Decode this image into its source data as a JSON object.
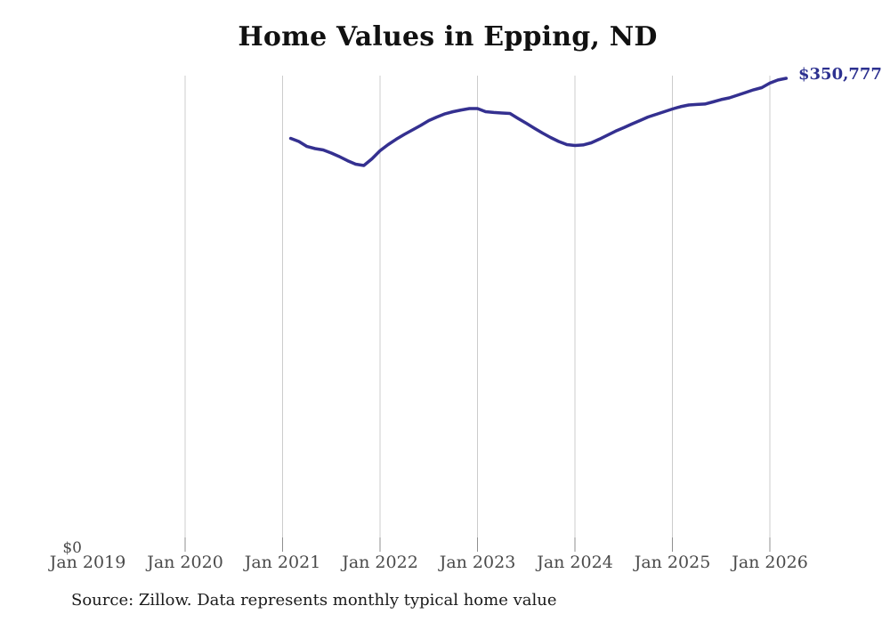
{
  "chart": {
    "title": "Home Values in Epping, ND",
    "source": "Source: Zillow. Data represents monthly typical home value",
    "end_label": "$350,777",
    "y_zero_label": "$0",
    "line_color": "#343090",
    "end_label_color": "#2d3190",
    "grid_color": "#cccccc",
    "tick_color": "#8f8f8f",
    "axis_text_color": "#4a4a4a"
  },
  "chart_data": {
    "type": "line",
    "title": "Home Values in Epping, ND",
    "xlabel": "",
    "ylabel": "",
    "ylim": [
      0,
      353000
    ],
    "grid": "vertical-only",
    "legend": "none",
    "x_tick_labels": [
      "Jan 2019",
      "Jan 2020",
      "Jan 2021",
      "Jan 2022",
      "Jan 2023",
      "Jan 2024",
      "Jan 2025",
      "Jan 2026"
    ],
    "y_tick_labels": [
      "$0"
    ],
    "end_value": 350777,
    "end_value_label": "$350,777",
    "series": [
      {
        "name": "Typical home value",
        "x": [
          "2021-02",
          "2021-03",
          "2021-04",
          "2021-05",
          "2021-06",
          "2021-07",
          "2021-08",
          "2021-09",
          "2021-10",
          "2021-11",
          "2021-12",
          "2022-01",
          "2022-02",
          "2022-03",
          "2022-04",
          "2022-05",
          "2022-06",
          "2022-07",
          "2022-08",
          "2022-09",
          "2022-10",
          "2022-11",
          "2022-12",
          "2023-01",
          "2023-02",
          "2023-03",
          "2023-04",
          "2023-05",
          "2023-06",
          "2023-07",
          "2023-08",
          "2023-09",
          "2023-10",
          "2023-11",
          "2023-12",
          "2024-01",
          "2024-02",
          "2024-03",
          "2024-04",
          "2024-05",
          "2024-06",
          "2024-07",
          "2024-08",
          "2024-09",
          "2024-10",
          "2024-11",
          "2024-12",
          "2025-01",
          "2025-02",
          "2025-03",
          "2025-04",
          "2025-05",
          "2025-06",
          "2025-07",
          "2025-08",
          "2025-09",
          "2025-10",
          "2025-11",
          "2025-12",
          "2026-01",
          "2026-02",
          "2026-03"
        ],
        "values": [
          306000,
          303700,
          300000,
          298400,
          297400,
          295100,
          292400,
          289400,
          286800,
          285800,
          290800,
          296800,
          301400,
          305400,
          309000,
          312300,
          315600,
          319300,
          321900,
          324300,
          325900,
          327200,
          328200,
          328200,
          325900,
          325300,
          324900,
          324600,
          320900,
          317300,
          313600,
          310000,
          306700,
          303700,
          301400,
          300700,
          301100,
          302700,
          305400,
          308400,
          311400,
          314000,
          316700,
          319300,
          321900,
          323900,
          325900,
          327900,
          329600,
          330900,
          331300,
          331600,
          333200,
          334900,
          336200,
          338200,
          340200,
          342200,
          343800,
          347200,
          349500,
          350777
        ]
      }
    ]
  }
}
